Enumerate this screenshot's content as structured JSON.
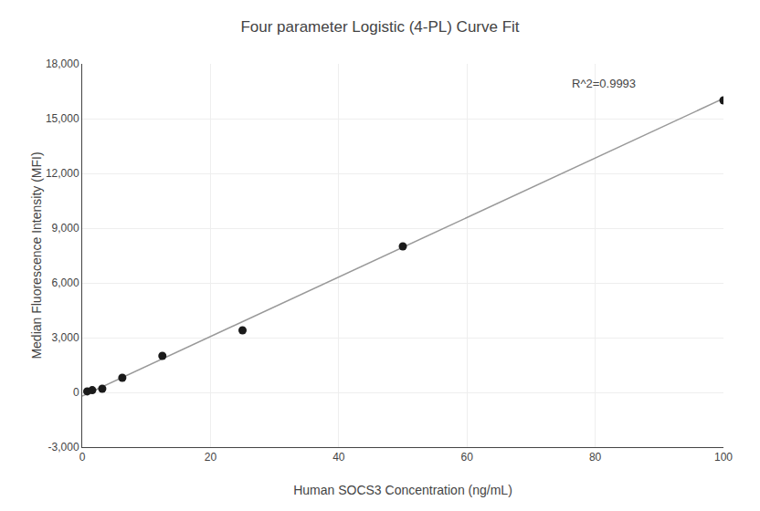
{
  "chart_data": {
    "type": "scatter",
    "title": "Four parameter Logistic (4-PL) Curve Fit",
    "xlabel": "Human SOCS3 Concentration (ng/mL)",
    "ylabel": "Median Fluorescence Intensity (MFI)",
    "annotation": "R^2=0.9993",
    "series": [
      {
        "type": "line",
        "color": "#999999",
        "x": [
          0.0,
          100.0
        ],
        "values": [
          -200.0,
          16100.0
        ]
      },
      {
        "type": "scatter",
        "color": "#1a1a1a",
        "x": [
          0.781,
          1.563,
          3.125,
          6.25,
          12.5,
          25.0,
          50.0,
          100.0
        ],
        "values": [
          55,
          120,
          200,
          800,
          2000,
          3400,
          8000,
          16000
        ]
      }
    ],
    "xlim": [
      0,
      100
    ],
    "xticks": [
      0,
      20,
      40,
      60,
      80,
      100
    ],
    "ylim": [
      -3000,
      18000
    ],
    "yticks": [
      {
        "value": -3000,
        "label": "-3,000"
      },
      0,
      {
        "value": 3000,
        "label": "3,000"
      },
      {
        "value": 6000,
        "label": "6,000"
      },
      {
        "value": 9000,
        "label": "9,000"
      },
      {
        "value": 12000,
        "label": "12,000"
      },
      {
        "value": 15000,
        "label": "15,000"
      },
      {
        "value": 18000,
        "label": "18,000"
      }
    ],
    "grid": true
  }
}
